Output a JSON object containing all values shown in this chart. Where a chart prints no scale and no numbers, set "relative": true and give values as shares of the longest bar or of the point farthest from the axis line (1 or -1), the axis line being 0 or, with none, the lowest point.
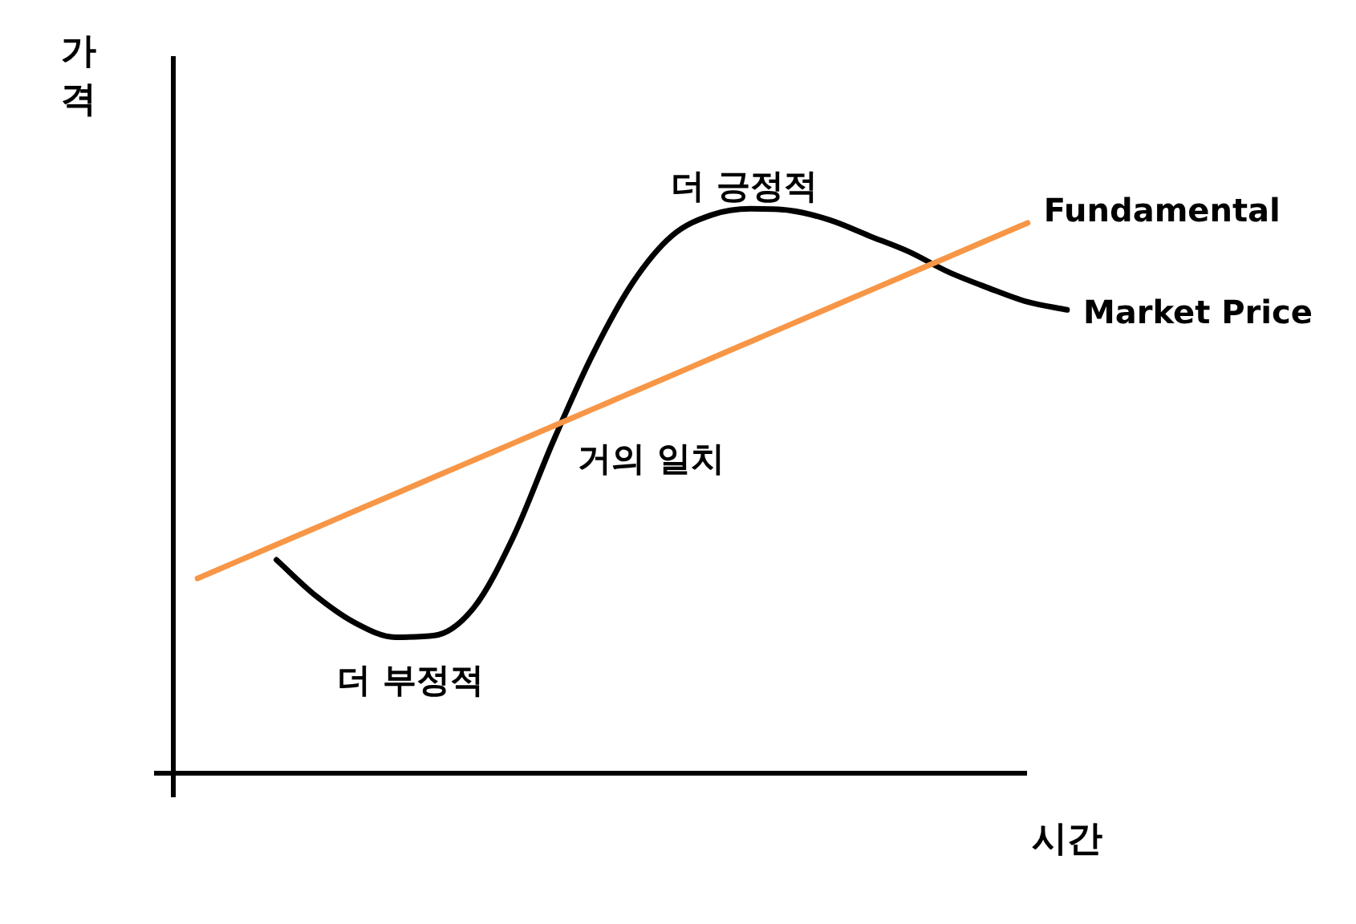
{
  "chart_data": {
    "type": "line",
    "relative": true,
    "xlabel": "시간",
    "ylabel": "가격",
    "categories": [
      null,
      null,
      null,
      null,
      null,
      null,
      null,
      null,
      null,
      null,
      null,
      null,
      null,
      null,
      null,
      null,
      null,
      null,
      null,
      null,
      null,
      null,
      null
    ],
    "series": [
      {
        "name": "Fundamental",
        "color": "#f79646",
        "values": [
          0.345,
          0.375,
          0.405,
          0.435,
          0.465,
          0.495,
          0.525,
          0.555,
          0.585,
          0.615,
          0.645,
          0.675,
          0.705,
          0.735,
          0.765,
          0.795,
          0.825,
          0.855,
          0.885,
          0.915,
          0.945,
          0.975,
          null
        ]
      },
      {
        "name": "Market Price",
        "color": "#000000",
        "values": [
          null,
          null,
          0.378,
          0.314,
          0.266,
          0.241,
          0.244,
          0.294,
          0.42,
          0.588,
          0.742,
          0.868,
          0.952,
          0.989,
          1.0,
          0.997,
          0.98,
          0.952,
          0.924,
          0.888,
          0.86,
          0.835,
          0.821
        ]
      }
    ],
    "annotations": [
      "더 긍정적",
      "거의 일치",
      "더 부정적"
    ],
    "grid": false,
    "legend": false,
    "marker": "none",
    "line_style": "solid"
  }
}
